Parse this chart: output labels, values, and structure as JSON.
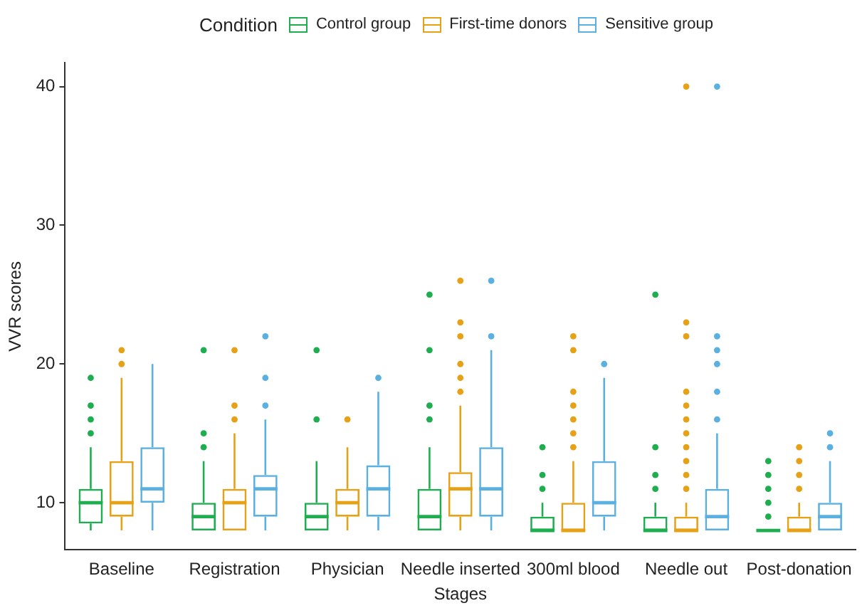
{
  "chart_data": {
    "type": "box",
    "xlabel": "Stages",
    "ylabel": "VVR scores",
    "legend_title": "Condition",
    "legend": "top",
    "grid": false,
    "categories": [
      "Baseline",
      "Registration",
      "Physician",
      "Needle inserted",
      "300ml blood",
      "Needle out",
      "Post-donation"
    ],
    "ylim": [
      6.6,
      41.7
    ],
    "yticks": [
      10,
      20,
      30,
      40
    ],
    "series": [
      {
        "name": "Control group",
        "color": "#1fae4f",
        "boxes": [
          {
            "low": 8,
            "q1": 8.5,
            "median": 10,
            "q3": 11,
            "high": 14,
            "outliers": [
              15,
              16,
              17,
              19
            ]
          },
          {
            "low": 8,
            "q1": 8,
            "median": 9,
            "q3": 10,
            "high": 13,
            "outliers": [
              14,
              15,
              21
            ]
          },
          {
            "low": 8,
            "q1": 8,
            "median": 9,
            "q3": 10,
            "high": 13,
            "outliers": [
              16,
              21
            ]
          },
          {
            "low": 8,
            "q1": 8,
            "median": 9,
            "q3": 11,
            "high": 14,
            "outliers": [
              16,
              17,
              21,
              25
            ]
          },
          {
            "low": 8,
            "q1": 8,
            "median": 8,
            "q3": 9,
            "high": 10,
            "outliers": [
              11,
              12,
              14
            ]
          },
          {
            "low": 8,
            "q1": 8,
            "median": 8,
            "q3": 9,
            "high": 10,
            "outliers": [
              11,
              12,
              14,
              25
            ]
          },
          {
            "low": 8,
            "q1": 8,
            "median": 8,
            "q3": 8,
            "high": 8,
            "outliers": [
              9,
              10,
              11,
              12,
              13
            ]
          }
        ]
      },
      {
        "name": "First-time donors",
        "color": "#e6a117",
        "boxes": [
          {
            "low": 8,
            "q1": 9,
            "median": 10,
            "q3": 13,
            "high": 19,
            "outliers": [
              20,
              21
            ]
          },
          {
            "low": 8,
            "q1": 8,
            "median": 10,
            "q3": 11,
            "high": 15,
            "outliers": [
              16,
              17,
              21
            ]
          },
          {
            "low": 8,
            "q1": 9,
            "median": 10,
            "q3": 11,
            "high": 14,
            "outliers": [
              16
            ]
          },
          {
            "low": 8,
            "q1": 9,
            "median": 11,
            "q3": 12.2,
            "high": 17,
            "outliers": [
              18,
              19,
              20,
              22,
              23,
              26
            ]
          },
          {
            "low": 8,
            "q1": 8,
            "median": 8,
            "q3": 10,
            "high": 13,
            "outliers": [
              14,
              15,
              16,
              17,
              18,
              21,
              22
            ]
          },
          {
            "low": 8,
            "q1": 8,
            "median": 8,
            "q3": 9,
            "high": 10,
            "outliers": [
              11,
              12,
              13,
              14,
              15,
              16,
              17,
              18,
              22,
              23,
              40
            ]
          },
          {
            "low": 8,
            "q1": 8,
            "median": 8,
            "q3": 9,
            "high": 10,
            "outliers": [
              11,
              12,
              13,
              14
            ]
          }
        ]
      },
      {
        "name": "Sensitive group",
        "color": "#5ab0e0",
        "boxes": [
          {
            "low": 8,
            "q1": 10,
            "median": 11,
            "q3": 14,
            "high": 20
          },
          {
            "low": 8,
            "q1": 9,
            "median": 11,
            "q3": 12,
            "high": 16,
            "outliers": [
              17,
              19,
              22
            ]
          },
          {
            "low": 8,
            "q1": 9,
            "median": 11,
            "q3": 12.7,
            "high": 18,
            "outliers": [
              19
            ]
          },
          {
            "low": 8,
            "q1": 9,
            "median": 11,
            "q3": 14,
            "high": 21,
            "outliers": [
              22,
              26
            ]
          },
          {
            "low": 8,
            "q1": 9,
            "median": 10,
            "q3": 13,
            "high": 19,
            "outliers": [
              20
            ]
          },
          {
            "low": 8,
            "q1": 8,
            "median": 9,
            "q3": 11,
            "high": 15,
            "outliers": [
              16,
              18,
              20,
              21,
              22,
              40
            ]
          },
          {
            "low": 8,
            "q1": 8,
            "median": 9,
            "q3": 10,
            "high": 13,
            "outliers": [
              14,
              15
            ]
          }
        ]
      }
    ]
  }
}
